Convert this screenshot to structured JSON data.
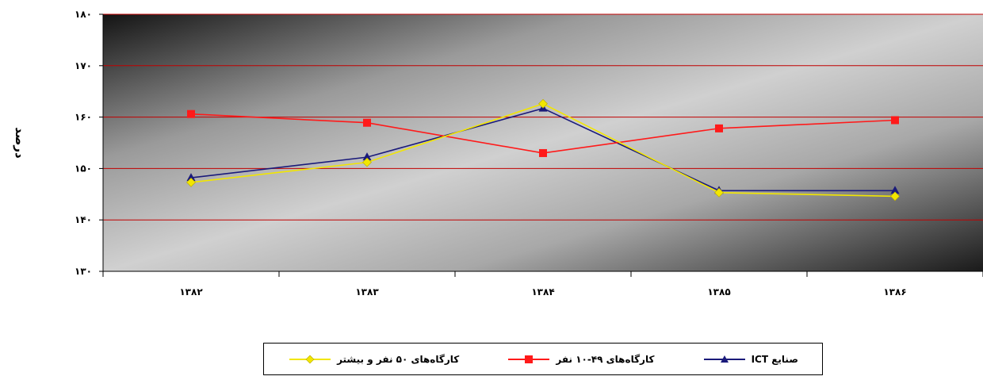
{
  "chart_data": {
    "type": "line",
    "title": "",
    "xlabel": "",
    "ylabel": "درصد",
    "categories": [
      "۱۳۸۲",
      "۱۳۸۳",
      "۱۳۸۴",
      "۱۳۸۵",
      "۱۳۸۶"
    ],
    "ylim": [
      130,
      180
    ],
    "yticks": [
      130,
      140,
      150,
      160,
      170,
      180
    ],
    "ytick_labels": [
      "۱۳۰",
      "۱۴۰",
      "۱۵۰",
      "۱۶۰",
      "۱۷۰",
      "۱۸۰"
    ],
    "grid": true,
    "grid_color": "#c00000",
    "legend_position": "bottom",
    "series": [
      {
        "name": "صنایع ICT",
        "values": [
          148.2,
          152.2,
          161.7,
          145.7,
          145.7
        ],
        "color": "#1a1a7a",
        "marker": "triangle"
      },
      {
        "name": "کارگاه‌های ۴۹-۱۰ نفر",
        "values": [
          160.6,
          158.9,
          153.0,
          157.8,
          159.4
        ],
        "color": "#ff1a1a",
        "marker": "square"
      },
      {
        "name": "کارگاه‌های ۵۰ نفر و بیشتر",
        "values": [
          147.3,
          151.2,
          162.6,
          145.3,
          144.6
        ],
        "color": "#f2e600",
        "marker": "diamond"
      }
    ]
  }
}
